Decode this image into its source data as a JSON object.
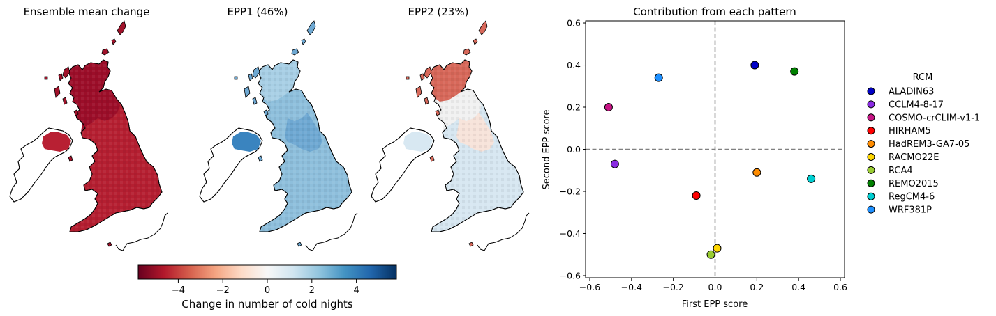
{
  "maps": [
    {
      "title": "Ensemble mean change",
      "field": "mean"
    },
    {
      "title": "EPP1 (46%)",
      "field": "epp1"
    },
    {
      "title": "EPP2 (23%)",
      "field": "epp2"
    }
  ],
  "colorbar": {
    "label": "Change in number of cold nights",
    "range": [
      -5.8,
      5.8
    ],
    "ticks": [
      -4,
      -2,
      0,
      2,
      4
    ],
    "tick_labels": [
      "−4",
      "−2",
      "0",
      "2",
      "4"
    ],
    "colormap": "RdBu",
    "stops": [
      "#67001f",
      "#b2182b",
      "#d6604d",
      "#f4a582",
      "#fddbc7",
      "#f7f7f7",
      "#d1e5f0",
      "#92c5de",
      "#4393c3",
      "#2166ac",
      "#053061"
    ]
  },
  "chart_data": {
    "type": "scatter",
    "title": "Contribution from each pattern",
    "xlabel": "First EPP score",
    "ylabel": "Second EPP score",
    "xlim": [
      -0.62,
      0.62
    ],
    "ylim": [
      -0.61,
      0.61
    ],
    "xticks": [
      -0.6,
      -0.4,
      -0.2,
      0.0,
      0.2,
      0.4,
      0.6
    ],
    "xtick_labels": [
      "−0.6",
      "−0.4",
      "−0.2",
      "0.0",
      "0.2",
      "0.4",
      "0.6"
    ],
    "yticks": [
      -0.6,
      -0.4,
      -0.2,
      0.0,
      0.2,
      0.4,
      0.6
    ],
    "ytick_labels": [
      "−0.6",
      "−0.4",
      "−0.2",
      "0.0",
      "0.2",
      "0.4",
      "0.6"
    ],
    "reference_lines": {
      "x": 0,
      "y": 0,
      "style": "dashed",
      "color": "#808080"
    },
    "grid": false,
    "legend": {
      "title": "RCM",
      "placement": "right, outside"
    },
    "series": [
      {
        "name": "ALADIN63",
        "color": "#0000c8",
        "x": 0.19,
        "y": 0.4
      },
      {
        "name": "CCLM4-8-17",
        "color": "#8a2be2",
        "x": -0.48,
        "y": -0.07
      },
      {
        "name": "COSMO-crCLIM-v1-1",
        "color": "#c71585",
        "x": -0.51,
        "y": 0.2
      },
      {
        "name": "HIRHAM5",
        "color": "#ff0000",
        "x": -0.09,
        "y": -0.22
      },
      {
        "name": "HadREM3-GA7-05",
        "color": "#ff8c00",
        "x": 0.2,
        "y": -0.11
      },
      {
        "name": "RACMO22E",
        "color": "#ffd700",
        "x": 0.01,
        "y": -0.47
      },
      {
        "name": "RCA4",
        "color": "#9acd32",
        "x": -0.02,
        "y": -0.5
      },
      {
        "name": "REMO2015",
        "color": "#008000",
        "x": 0.38,
        "y": 0.37
      },
      {
        "name": "RegCM4-6",
        "color": "#00ced1",
        "x": 0.46,
        "y": -0.14
      },
      {
        "name": "WRF381P",
        "color": "#1e90ff",
        "x": -0.27,
        "y": 0.34
      }
    ]
  }
}
